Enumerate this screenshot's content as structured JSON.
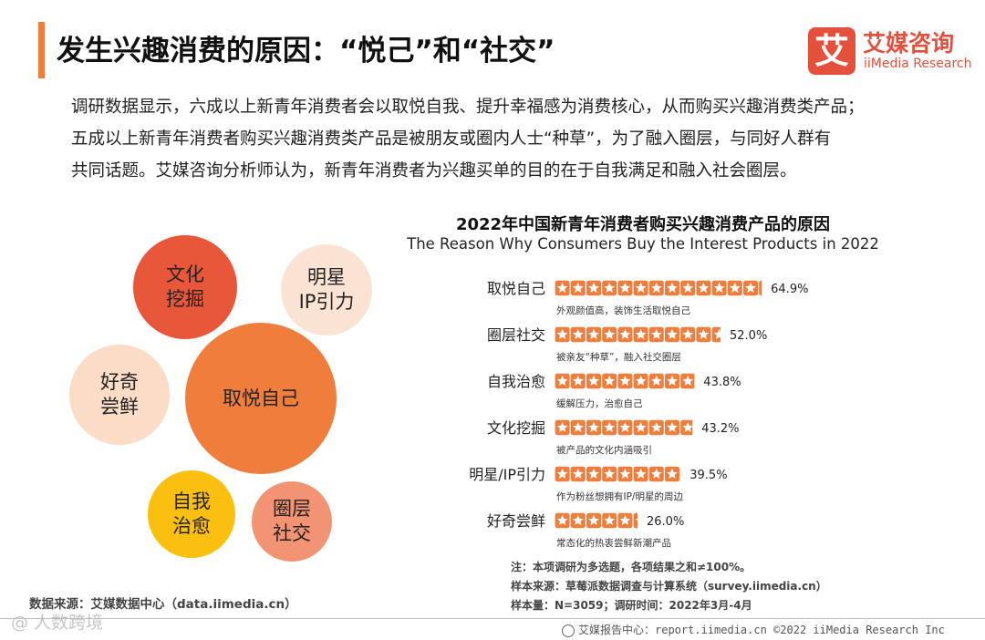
{
  "colors": {
    "accent": "#ef7d3c",
    "brand_red": "#e5503c",
    "bar_star": "#ef7d3c"
  },
  "header": {
    "title": "发生兴趣消费的原因：“悦己”和“社交”"
  },
  "logo": {
    "mark": "艾",
    "name_cn": "艾媒咨询",
    "name_en": "iiMedia Research"
  },
  "intro": {
    "lines": [
      "调研数据显示，六成以上新青年消费者会以取悦自我、提升幸福感为消费核心，从而购买兴趣消费类产品；",
      "五成以上新青年消费者购买兴趣消费类产品是被朋友或圈内人士“种草”，为了融入圈层，与同好人群有",
      "共同话题。艾媒咨询分析师认为，新青年消费者为兴趣买单的目的在于自我满足和融入社会圈层。"
    ]
  },
  "bubbles": [
    {
      "label": "文化\n挖掘",
      "color": "#e8573a",
      "text_color": "#222"
    },
    {
      "label": "明星\nIP引力",
      "color": "#fbe3d3",
      "text_color": "#222"
    },
    {
      "label": "好奇\n尝鲜",
      "color": "#fbdcc6",
      "text_color": "#222"
    },
    {
      "label": "取悦自己",
      "color": "#ef7d3c",
      "text_color": "#222"
    },
    {
      "label": "自我\n治愈",
      "color": "#fbbf10",
      "text_color": "#222"
    },
    {
      "label": "圈层\n社交",
      "color": "#f29473",
      "text_color": "#222"
    }
  ],
  "chart_data": {
    "type": "bar",
    "title": "2022年中国新青年消费者购买兴趣消费产品的原因",
    "subtitle": "The Reason Why Consumers Buy the Interest Products in 2022",
    "categories": [
      "取悦自己",
      "圈层社交",
      "自我治愈",
      "文化挖掘",
      "明星/IP引力",
      "好奇尝鲜"
    ],
    "values": [
      64.9,
      52.0,
      43.8,
      43.2,
      39.5,
      26.0
    ],
    "value_labels": [
      "64.9%",
      "52.0%",
      "43.8%",
      "43.2%",
      "39.5%",
      "26.0%"
    ],
    "descriptions": [
      "外观颜值高，装饰生活取悦自己",
      "被亲友“种草”，融入社交圈层",
      "缓解压力，治愈自己",
      "被产品的文化内涵吸引",
      "作为粉丝想拥有IP/明星的周边",
      "常态化的热衷尝鲜新潮产品"
    ],
    "unit": "%"
  },
  "notes": {
    "note": "注：本项调研为多选题，各项结果之和≠100%。",
    "sample_source": "样本来源：草莓派数据调查与计算系统（survey.iimedia.cn）",
    "sample_size": "样本量：N=3059；调研时间：2022年3月-4月"
  },
  "source": "数据来源：艾媒数据中心（data.iimedia.cn）",
  "footer": "艾媒报告中心：report.iimedia.cn  ©2022  iiMedia Research  Inc",
  "watermark": "@ 人数跨境"
}
